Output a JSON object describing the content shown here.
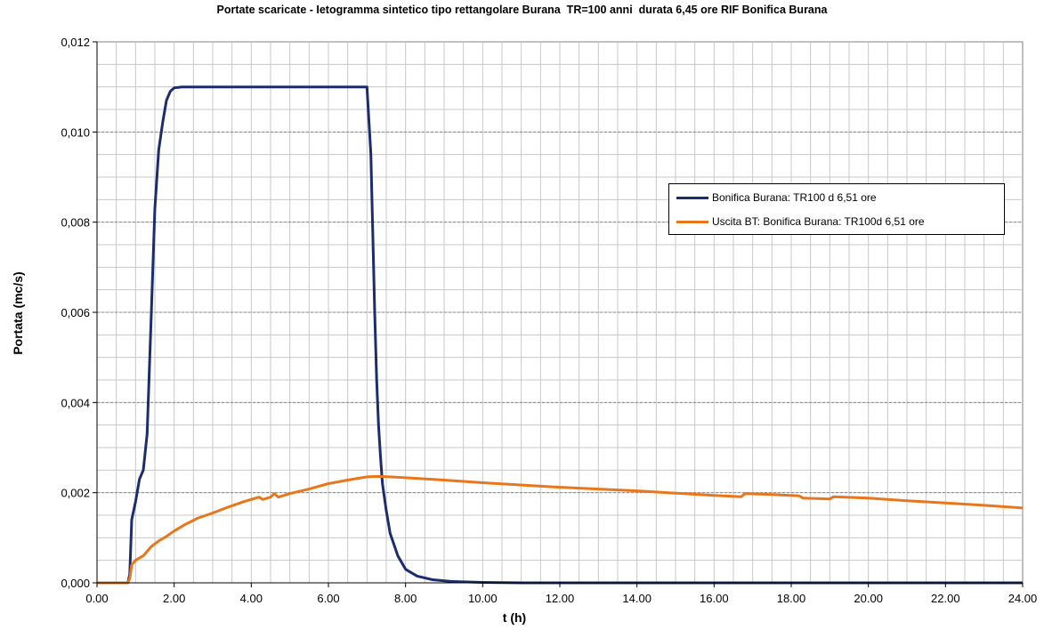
{
  "chart_data": {
    "type": "line",
    "title": "Portate scaricate - Ietogramma sintetico tipo rettangolare Burana  TR=100 anni  durata 6,45 ore RIF Bonifica Burana",
    "xlabel": "t (h)",
    "ylabel": "Portata (mc/s)",
    "xlim": [
      0,
      24
    ],
    "ylim": [
      0,
      0.012
    ],
    "x_ticks": [
      0,
      2,
      4,
      6,
      8,
      10,
      12,
      14,
      16,
      18,
      20,
      22,
      24
    ],
    "x_tick_labels": [
      "0.00",
      "2.00",
      "4.00",
      "6.00",
      "8.00",
      "10.00",
      "12.00",
      "14.00",
      "16.00",
      "18.00",
      "20.00",
      "22.00",
      "24.00"
    ],
    "y_ticks": [
      0,
      0.002,
      0.004,
      0.006,
      0.008,
      0.01,
      0.012
    ],
    "y_tick_labels": [
      "0,000",
      "0,002",
      "0,004",
      "0,006",
      "0,008",
      "0,010",
      "0,012"
    ],
    "grid": true,
    "legend_position": "right",
    "series": [
      {
        "name": "Bonifica Burana: TR100 d 6,51 ore",
        "color": "#1c2d6e",
        "points": [
          [
            0,
            0
          ],
          [
            0.8,
            0
          ],
          [
            0.85,
            0.0002
          ],
          [
            0.9,
            0.0014
          ],
          [
            1.0,
            0.0018
          ],
          [
            1.1,
            0.0023
          ],
          [
            1.2,
            0.0025
          ],
          [
            1.3,
            0.0033
          ],
          [
            1.4,
            0.0058
          ],
          [
            1.5,
            0.0083
          ],
          [
            1.6,
            0.0096
          ],
          [
            1.7,
            0.0102
          ],
          [
            1.8,
            0.0107
          ],
          [
            1.9,
            0.0109
          ],
          [
            2.0,
            0.01098
          ],
          [
            2.2,
            0.011
          ],
          [
            3.0,
            0.011
          ],
          [
            4.0,
            0.011
          ],
          [
            5.0,
            0.011
          ],
          [
            6.0,
            0.011
          ],
          [
            6.9,
            0.011
          ],
          [
            7.0,
            0.011
          ],
          [
            7.1,
            0.0095
          ],
          [
            7.2,
            0.006
          ],
          [
            7.25,
            0.0045
          ],
          [
            7.3,
            0.0035
          ],
          [
            7.35,
            0.0028
          ],
          [
            7.4,
            0.0022
          ],
          [
            7.5,
            0.0016
          ],
          [
            7.6,
            0.0011
          ],
          [
            7.8,
            0.0006
          ],
          [
            8.0,
            0.0003
          ],
          [
            8.3,
            0.00015
          ],
          [
            8.7,
            7e-05
          ],
          [
            9.2,
            3e-05
          ],
          [
            10.0,
            1e-05
          ],
          [
            11.0,
            0
          ],
          [
            24.0,
            0
          ]
        ]
      },
      {
        "name": "Uscita BT: Bonifica Burana: TR100d 6,51 ore",
        "color": "#e8761c",
        "points": [
          [
            0,
            0
          ],
          [
            0.8,
            0
          ],
          [
            0.85,
            0.0001
          ],
          [
            0.9,
            0.0004
          ],
          [
            1.0,
            0.0005
          ],
          [
            1.2,
            0.0006
          ],
          [
            1.4,
            0.0008
          ],
          [
            1.6,
            0.00093
          ],
          [
            1.8,
            0.00103
          ],
          [
            2.0,
            0.00115
          ],
          [
            2.3,
            0.0013
          ],
          [
            2.6,
            0.00143
          ],
          [
            3.0,
            0.00155
          ],
          [
            3.4,
            0.00168
          ],
          [
            3.8,
            0.0018
          ],
          [
            4.2,
            0.0019
          ],
          [
            4.3,
            0.00185
          ],
          [
            4.5,
            0.0019
          ],
          [
            4.6,
            0.00198
          ],
          [
            4.7,
            0.0019
          ],
          [
            5.0,
            0.00198
          ],
          [
            5.5,
            0.00208
          ],
          [
            6.0,
            0.0022
          ],
          [
            6.5,
            0.00228
          ],
          [
            7.0,
            0.00235
          ],
          [
            7.3,
            0.00236
          ],
          [
            7.6,
            0.00235
          ],
          [
            8.0,
            0.00233
          ],
          [
            9.0,
            0.00228
          ],
          [
            10.0,
            0.00222
          ],
          [
            12.0,
            0.00212
          ],
          [
            14.0,
            0.00204
          ],
          [
            15.0,
            0.00199
          ],
          [
            16.0,
            0.00194
          ],
          [
            16.7,
            0.00191
          ],
          [
            16.8,
            0.00198
          ],
          [
            17.5,
            0.00196
          ],
          [
            18.2,
            0.00193
          ],
          [
            18.3,
            0.00188
          ],
          [
            19.0,
            0.00186
          ],
          [
            19.1,
            0.00191
          ],
          [
            20.0,
            0.00188
          ],
          [
            21.0,
            0.00182
          ],
          [
            22.0,
            0.00177
          ],
          [
            23.0,
            0.00172
          ],
          [
            24.0,
            0.00166
          ]
        ]
      }
    ]
  }
}
